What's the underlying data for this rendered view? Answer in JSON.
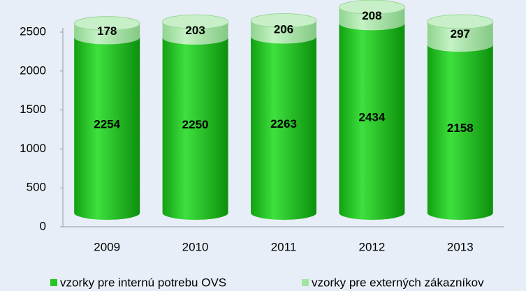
{
  "chart_data": {
    "type": "bar",
    "stacked": true,
    "categories": [
      "2009",
      "2010",
      "2011",
      "2012",
      "2013"
    ],
    "series": [
      {
        "name": "vzorky pre internú potrebu OVS",
        "color": "#22c822",
        "values": [
          2254,
          2250,
          2263,
          2434,
          2158
        ]
      },
      {
        "name": "vzorky pre externých zákazníkov",
        "color": "#a3e4a3",
        "values": [
          178,
          203,
          206,
          208,
          297
        ]
      }
    ],
    "ylim": [
      0,
      2500
    ],
    "yticks": [
      0,
      500,
      1000,
      1500,
      2000,
      2500
    ],
    "legend": "bottom"
  }
}
